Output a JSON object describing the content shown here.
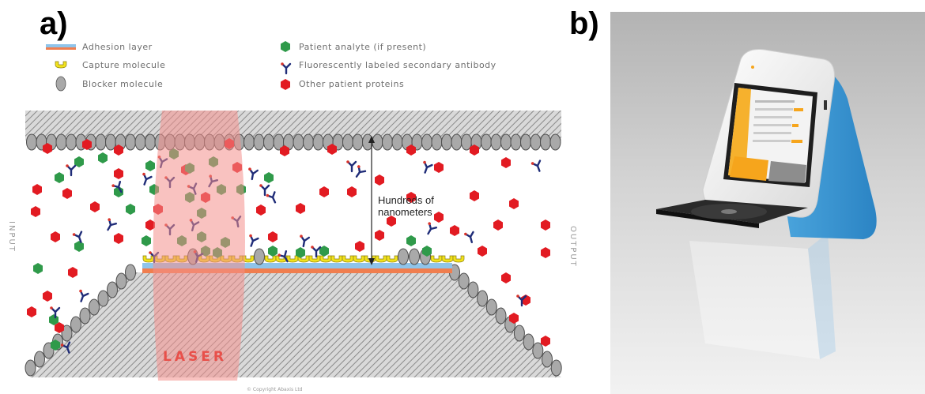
{
  "panel_a": {
    "label": "a)",
    "legend": {
      "adhesion": "Adhesion layer",
      "capture": "Capture molecule",
      "blocker": "Blocker molecule",
      "analyte": "Patient analyte (if present)",
      "antibody": "Fluorescently labeled secondary antibody",
      "proteins": "Other patient proteins"
    },
    "input_label": "INPUT",
    "output_label": "OUTPUT",
    "laser_label": "LASER",
    "gap_label_line1": "Hundreds of",
    "gap_label_line2": "nanometers",
    "copyright": "© Copyright Abaxis Ltd"
  },
  "panel_b": {
    "label": "b)"
  },
  "colors": {
    "protein_red": "#e21b22",
    "analyte_green": "#2f9a4a",
    "antibody_navy": "#1f2c78",
    "capture_yellow": "#f2e21c",
    "blocker_gray": "#a9a9a9",
    "adhesion_blue": "#8fc4ea",
    "adhesion_orange": "#f07e4f",
    "laser_pink": "#f4908c",
    "device_blue": "#2f8fce"
  },
  "icons": [
    "hexagon-icon",
    "antibody-y-icon",
    "capture-molecule-icon",
    "blocker-oval-icon"
  ]
}
